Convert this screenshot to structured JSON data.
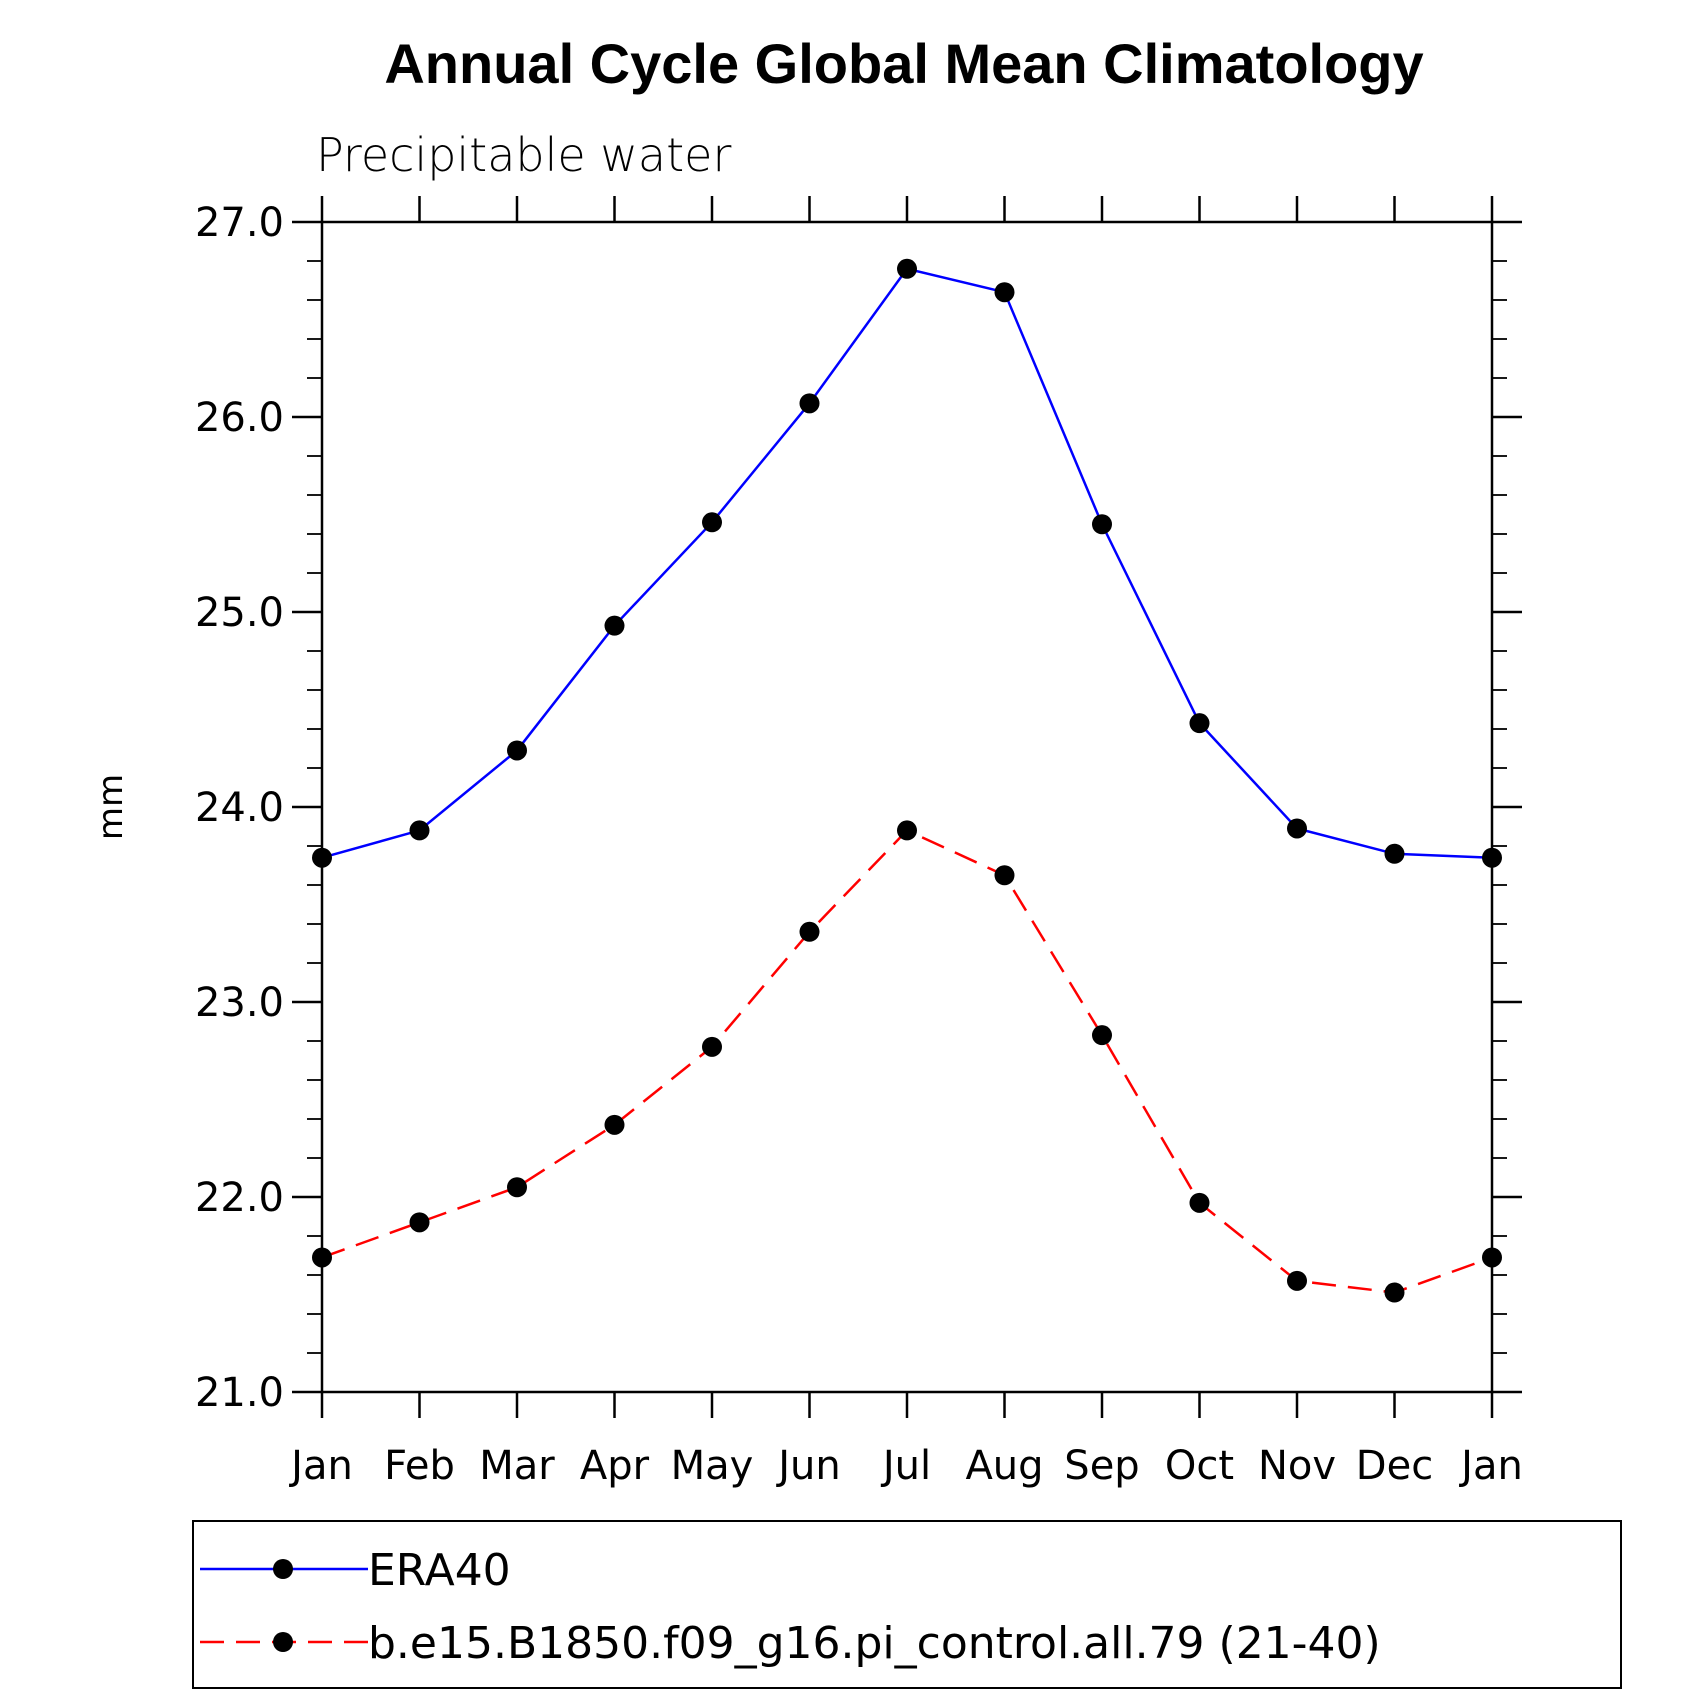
{
  "chart_data": {
    "type": "line",
    "title": "Annual Cycle Global Mean Climatology",
    "subtitle": "Precipitable water",
    "xlabel": "",
    "ylabel": "mm",
    "categories": [
      "Jan",
      "Feb",
      "Mar",
      "Apr",
      "May",
      "Jun",
      "Jul",
      "Aug",
      "Sep",
      "Oct",
      "Nov",
      "Dec",
      "Jan"
    ],
    "ylim": [
      21.0,
      27.0
    ],
    "yticks": [
      "21.0",
      "22.0",
      "23.0",
      "24.0",
      "25.0",
      "26.0",
      "27.0"
    ],
    "grid": false,
    "legend_position": "bottom",
    "series": [
      {
        "name": "ERA40",
        "color": "#0000ff",
        "dash": "solid",
        "values": [
          23.74,
          23.88,
          24.29,
          24.93,
          25.46,
          26.07,
          26.76,
          26.64,
          25.45,
          24.43,
          23.89,
          23.76,
          23.74
        ]
      },
      {
        "name": "b.e15.B1850.f09_g16.pi_control.all.79 (21-40)",
        "color": "#ff0000",
        "dash": "dashed",
        "values": [
          21.69,
          21.87,
          22.05,
          22.37,
          22.77,
          23.36,
          23.88,
          23.65,
          22.83,
          21.97,
          21.57,
          21.51,
          21.69
        ]
      }
    ]
  }
}
